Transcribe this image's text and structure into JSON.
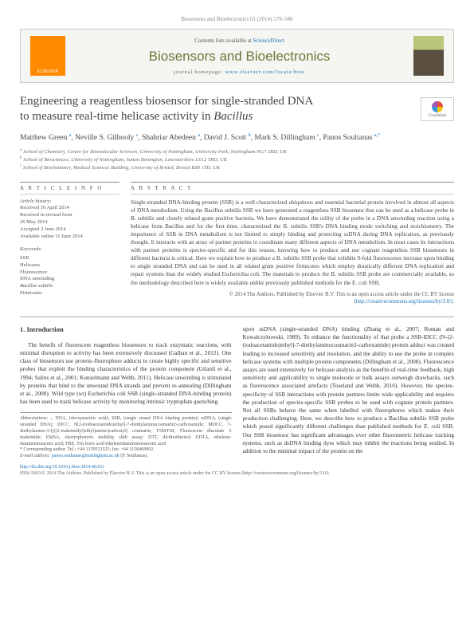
{
  "citation": "Biosensors and Bioelectronics 61 (2014) 579–586",
  "header": {
    "publisher": "ELSEVIER",
    "contents_prefix": "Contents lists available at ",
    "contents_link": "ScienceDirect",
    "journal": "Biosensors and Bioelectronics",
    "homepage_prefix": "journal homepage: ",
    "homepage_url": "www.elsevier.com/locate/bios"
  },
  "crossmark_label": "CrossMark",
  "title_line1": "Engineering a reagentless biosensor for single-stranded DNA",
  "title_line2": "to measure real-time helicase activity in ",
  "title_italic": "Bacillus",
  "authors_html": "Matthew Green <sup>a</sup>, Neville S. Gilhooly <sup>c</sup>, Shahriar Abedeen <sup>a</sup>, David J. Scott <sup>b</sup>, Mark S. Dillingham <sup>c</sup>, Panos Soultanas <sup>a,*</sup>",
  "affiliations": {
    "a": "School of Chemistry, Centre for Biomolecular Sciences, University of Nottingham, University Park, Nottingham NG7 2RD, UK",
    "b": "School of Biosciences, University of Nottingham, Sutton Bonington, Leicestershire LE12 5RD, UK",
    "c": "School of Biochemistry, Medical Sciences Building, University of Bristol, Bristol BS8 1TD, UK"
  },
  "info_head": "A R T I C L E  I N F O",
  "abstract_head": "A B S T R A C T",
  "history_label": "Article history:",
  "history": {
    "received": "Received 10 April 2014",
    "revised": "Received in revised form",
    "revised_date": "26 May 2014",
    "accepted": "Accepted 3 June 2014",
    "online": "Available online 11 June 2014"
  },
  "keywords_label": "Keywords:",
  "keywords": [
    "SSB",
    "Helicases",
    "Fluorescence",
    "DNA unwinding",
    "Bacillus subtilis",
    "Firmicutes"
  ],
  "abstract": "Single-stranded DNA-binding protein (SSB) is a well characterized ubiquitous and essential bacterial protein involved in almost all aspects of DNA metabolism. Using the Bacillus subtilis SSB we have generated a reagentless SSB biosensor that can be used as a helicase probe in B. subtilis and closely related gram positive bacteria. We have demonstrated the utility of the probe in a DNA unwinding reaction using a helicase from Bacillus and for the first time, characterized the B. subtilis SSB's DNA binding mode switching and stoichiometry. The importance of SSB in DNA metabolism is not limited to simply binding and protecting ssDNA during DNA replication, as previously thought. It interacts with an array of partner proteins to coordinate many different aspects of DNA metabolism. In most cases its interactions with partner proteins is species-specific and for this reason, knowing how to produce and use cognate reagentless SSB biosensors in different bacteria is critical. Here we explain how to produce a B. subtilis SSB probe that exhibits 9-fold fluorescence increase upon binding to single stranded DNA and can be used in all related gram positive firmicutes which employ drastically different DNA replication and repair systems than the widely studied Escherichia coli. The materials to produce the B. subtilis SSB probe are commercially available, so the methodology described here is widely available unlike previously published methods for the E. coli SSB.",
  "copyright_line": "© 2014 The Authors. Published by Elsevier B.V. This is an open access article under the CC BY license",
  "copyright_url": "(http://creativecommons.org/licenses/by/3.0/)",
  "intro_heading": "1. Introduction",
  "col1_p1": "The benefit of fluorescent reagentless biosensors to track enzymatic reactions, with minimal disruption to activity has been extensively discussed (Galban et al., 2012). One class of biosensors use protein–fluorophore adducts to create highly specific and sensitive probes that exploit the binding characteristics of the protein component (Gilardi et al., 1994; Salins et al., 2001; Kunzelmann and Webb, 2011). Helicase unwinding is stimulated by proteins that bind to the unwound DNA strands and prevent re-annealing (Dillingham et al., 2008). Wild type (wt) Escherichia coli SSB (single-stranded DNA-binding protein) has been used to track helicase activity by monitoring intrinsic tryptophan quenching",
  "col2_p1": "upon ssDNA (single-stranded DNA) binding (Zhang et al., 2007; Roman and Kowalczykowski, 1989). To enhance the functionality of that probe a SSB-IDCC (N-[2-(iodoacetamido)ethyl]-7-diethylaminocoumarin3-carboxamide) protein adduct was created leading to increased sensitivity and resolution, and the ability to use the probe in complex helicase systems with multiple protein components (Dillingham et al., 2008). Fluorescence assays are used extensively for helicase analysis as the benefits of real-time feedback, high sensitivity and applicability to single molecule or bulk assays outweigh drawbacks, such as fluorescence associated artefacts (Toseland and Webb, 2010). However, the species-specificity of SSB interactions with protein partners limits wide applicability and requires the production of species-specific SSB probes to be used with cognate protein partners. Not all SSBs behave the same when labelled with fluorophores which makes their production challenging. Here, we describe how to produce a Bacillus subtilis SSB probe which posed significantly different challenges than published methods for E. coli SSB. Our SSB biosensor has significant advantages over other fluorometric helicase tracking systems, such as dsDNA binding dyes which may inhibit the reactions being studied. In addition to the minimal impact of the protein on the",
  "abbreviations_label": "Abbreviations:",
  "abbreviations": " :, DNA, (deoxynucleic acid); SSB, (single strand DNA binding protein); ssDNA, (single stranded DNA); IDCC, N[2-(iodoacetamido)ethyl]-7-diethylaminocoumarin3-carboxamide; MDCC, 7-diethylamino-3-((((2-maleimidyl)ethyl)amino)carbonyl) coumarin; F5M/FM, Fluorescein diacetate 5 maleimide; EMSA, electrophoretic mobility shift assay; DTT, dicthiothreitol; EDTA, ethelene-daminetetraacetic acid; TBE, Tris boric acid ethelenediaminotetraacetic acid",
  "corresponding_label": "* Corresponding author. Tel.: +44 1159513525; fax: +44 1158468002.",
  "email_label": "E-mail address: ",
  "email": "panos.soultanas@nottingham.ac.uk",
  "email_suffix": " (P. Soultanas).",
  "doi": "http://dx.doi.org/10.1016/j.bios.2014.06.011",
  "issn_line": "0956-5663/© 2014 The Authors. Published by Elsevier B.V. This is an open access article under the CC BY license (http://creativecommons.org/licenses/by/3.0/).",
  "colors": {
    "link": "#1a6fb3",
    "journal_green": "#6b7a3a",
    "elsevier_orange": "#ff8a00"
  }
}
